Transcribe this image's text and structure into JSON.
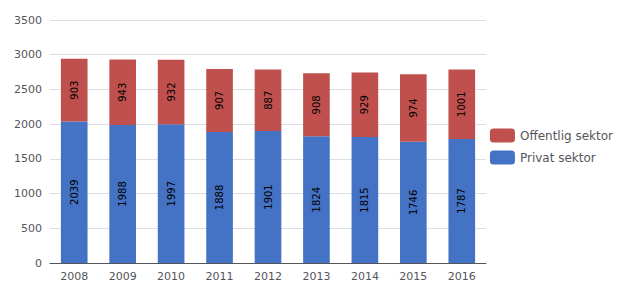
{
  "chart_data": {
    "type": "bar",
    "stacked": true,
    "categories": [
      "2008",
      "2009",
      "2010",
      "2011",
      "2012",
      "2013",
      "2014",
      "2015",
      "2016"
    ],
    "series": [
      {
        "name": "Privat sektor",
        "color": "#4472C4",
        "values": [
          2039,
          1988,
          1997,
          1888,
          1901,
          1824,
          1815,
          1746,
          1787
        ]
      },
      {
        "name": "Offentlig sektor",
        "color": "#C0504D",
        "values": [
          903,
          943,
          932,
          907,
          887,
          908,
          929,
          974,
          1001
        ]
      }
    ],
    "ylim": [
      0,
      3500
    ],
    "yticks": [
      0,
      500,
      1000,
      1500,
      2000,
      2500,
      3000,
      3500
    ],
    "grid": true,
    "legend": "right",
    "data_labels": true
  }
}
